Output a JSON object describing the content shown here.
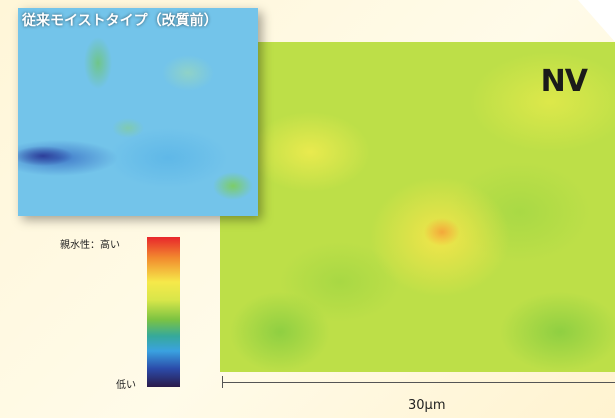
{
  "small_map": {
    "title": "従来モイストタイプ（改質前）"
  },
  "large_map": {
    "logo": "NV"
  },
  "color_scale": {
    "high_label": "親水性：高い",
    "low_label": "低い"
  },
  "scale_bar": {
    "label": "30μm"
  }
}
